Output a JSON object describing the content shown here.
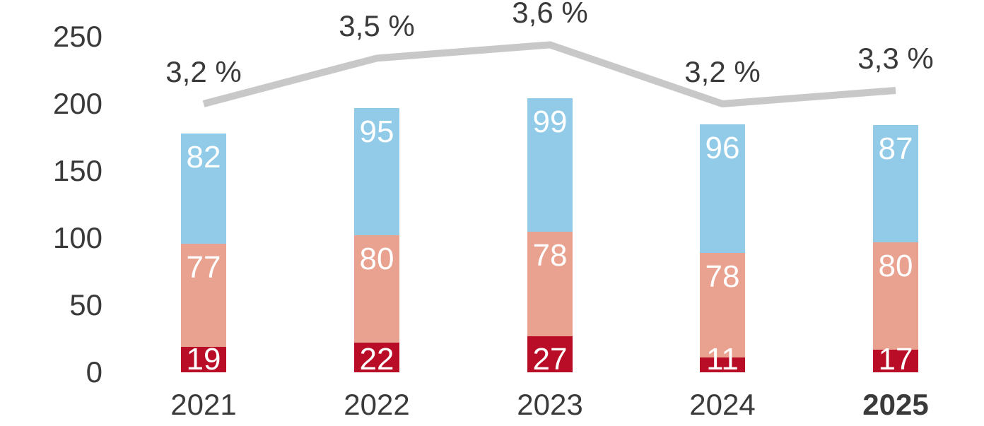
{
  "chart_data": {
    "type": "bar",
    "subtype": "stacked-bar-with-trend-line",
    "title": "",
    "categories": [
      "2021",
      "2022",
      "2023",
      "2024",
      "2025"
    ],
    "series": [
      {
        "name": "bottom-segment",
        "color": "#B90C26",
        "label_color": "#FFFFFF",
        "values": [
          19,
          22,
          27,
          11,
          17
        ]
      },
      {
        "name": "middle-segment",
        "color": "#E9A190",
        "label_color": "#FFFFFF",
        "values": [
          77,
          80,
          78,
          78,
          80
        ]
      },
      {
        "name": "top-segment",
        "color": "#92CBE8",
        "label_color": "#FFFFFF",
        "values": [
          82,
          95,
          99,
          96,
          87
        ]
      }
    ],
    "stack_totals": [
      178,
      197,
      204,
      185,
      184
    ],
    "line": {
      "name": "percentage-trend-line",
      "color": "#C8C8C8",
      "labels": [
        "3,2 %",
        "3,5 %",
        "3,6 %",
        "3,2 %",
        "3,3 %"
      ],
      "values_percent": [
        3.2,
        3.5,
        3.6,
        3.2,
        3.3
      ],
      "plot_values_on_primary_axis": [
        200,
        234,
        244,
        200,
        210
      ]
    },
    "y_axis": {
      "tick_labels": [
        "0",
        "50",
        "100",
        "150",
        "200",
        "250"
      ],
      "tick_values": [
        0,
        50,
        100,
        150,
        200,
        250
      ],
      "range": [
        0,
        250
      ],
      "gridlines": false
    },
    "x_axis": {
      "bold_last_label": true
    },
    "legend": "none",
    "colors": {
      "axis_text": "#3A3A3A",
      "background": "#FFFFFF"
    }
  }
}
